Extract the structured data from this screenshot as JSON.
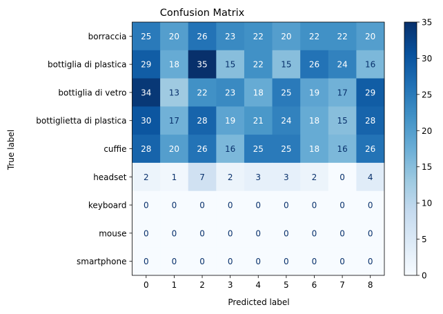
{
  "chart_data": {
    "type": "heatmap",
    "title": "Confusion Matrix",
    "xlabel": "Predicted label",
    "ylabel": "True label",
    "x_categories": [
      "0",
      "1",
      "2",
      "3",
      "4",
      "5",
      "6",
      "7",
      "8"
    ],
    "y_categories": [
      "borraccia",
      "bottiglia di plastica",
      "bottiglia di vetro",
      "bottiglietta di plastica",
      "cuffie",
      "headset",
      "keyboard",
      "mouse",
      "smartphone"
    ],
    "values": [
      [
        25,
        20,
        26,
        23,
        22,
        20,
        22,
        22,
        20
      ],
      [
        29,
        18,
        35,
        15,
        22,
        15,
        26,
        24,
        16
      ],
      [
        34,
        13,
        22,
        23,
        18,
        25,
        19,
        17,
        29
      ],
      [
        30,
        17,
        28,
        19,
        21,
        24,
        18,
        15,
        28
      ],
      [
        28,
        20,
        26,
        16,
        25,
        25,
        18,
        16,
        26
      ],
      [
        2,
        1,
        7,
        2,
        3,
        3,
        2,
        0,
        4
      ],
      [
        0,
        0,
        0,
        0,
        0,
        0,
        0,
        0,
        0
      ],
      [
        0,
        0,
        0,
        0,
        0,
        0,
        0,
        0,
        0
      ],
      [
        0,
        0,
        0,
        0,
        0,
        0,
        0,
        0,
        0
      ]
    ],
    "colormap": "Blues",
    "vmin": 0,
    "vmax": 35,
    "colorbar_ticks": [
      0,
      5,
      10,
      15,
      20,
      25,
      30,
      35
    ]
  }
}
